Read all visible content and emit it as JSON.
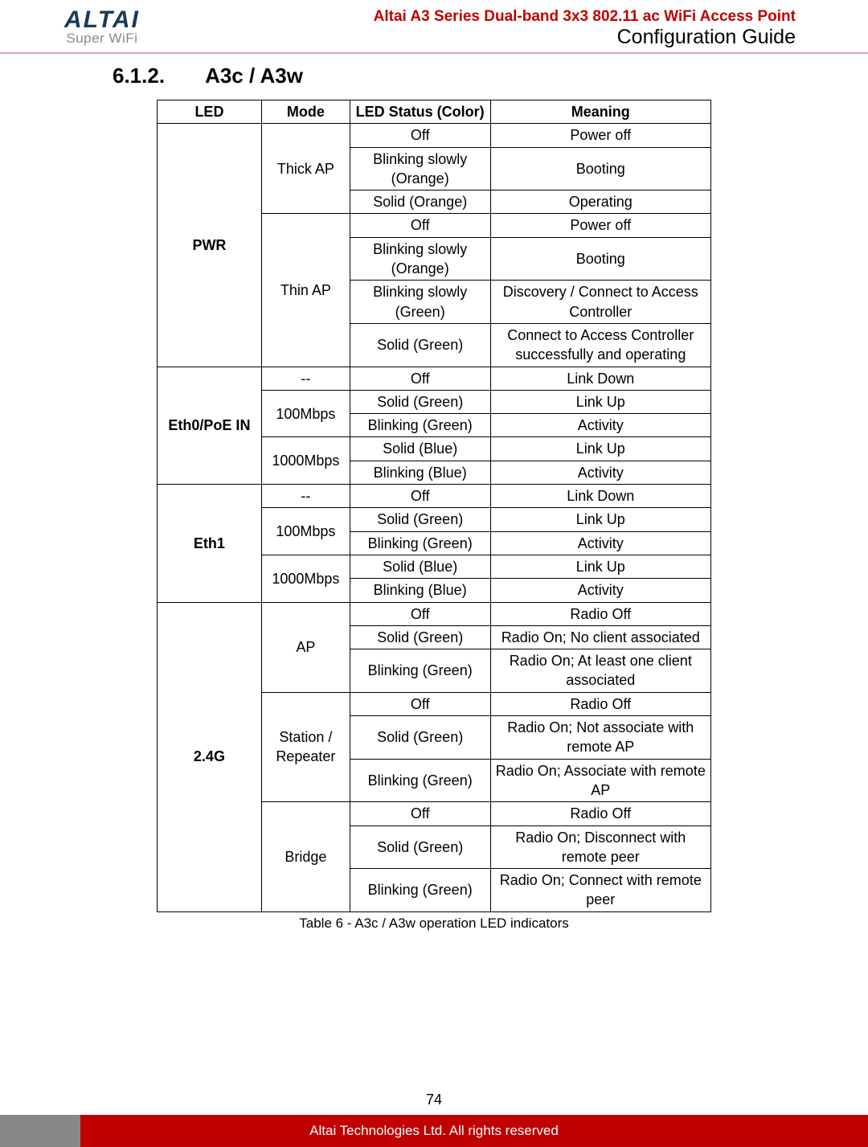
{
  "header": {
    "logo_top": "ALTAI",
    "logo_sub": "Super WiFi",
    "product_title": "Altai A3 Series Dual-band 3x3 802.11 ac WiFi Access Point",
    "doc_title": "Configuration Guide"
  },
  "section": {
    "num": "6.1.2.",
    "title": "A3c / A3w"
  },
  "table": {
    "headers": {
      "led": "LED",
      "mode": "Mode",
      "status": "LED Status (Color)",
      "meaning": "Meaning"
    },
    "groups": [
      {
        "led": "PWR",
        "modes": [
          {
            "mode": "Thick AP",
            "rows": [
              {
                "status": "Off",
                "meaning": "Power off"
              },
              {
                "status": "Blinking slowly (Orange)",
                "meaning": "Booting"
              },
              {
                "status": "Solid (Orange)",
                "meaning": "Operating"
              }
            ]
          },
          {
            "mode": "Thin AP",
            "rows": [
              {
                "status": "Off",
                "meaning": "Power off"
              },
              {
                "status": "Blinking slowly (Orange)",
                "meaning": "Booting"
              },
              {
                "status": "Blinking slowly (Green)",
                "meaning": "Discovery / Connect to Access Controller"
              },
              {
                "status": "Solid (Green)",
                "meaning": "Connect to Access Controller successfully and operating"
              }
            ]
          }
        ]
      },
      {
        "led": "Eth0/PoE IN",
        "modes": [
          {
            "mode": "--",
            "rows": [
              {
                "status": "Off",
                "meaning": "Link Down"
              }
            ]
          },
          {
            "mode": "100Mbps",
            "rows": [
              {
                "status": "Solid (Green)",
                "meaning": "Link Up"
              },
              {
                "status": "Blinking (Green)",
                "meaning": "Activity"
              }
            ]
          },
          {
            "mode": "1000Mbps",
            "rows": [
              {
                "status": "Solid (Blue)",
                "meaning": "Link Up"
              },
              {
                "status": "Blinking (Blue)",
                "meaning": "Activity"
              }
            ]
          }
        ]
      },
      {
        "led": "Eth1",
        "modes": [
          {
            "mode": "--",
            "rows": [
              {
                "status": "Off",
                "meaning": "Link Down"
              }
            ]
          },
          {
            "mode": "100Mbps",
            "rows": [
              {
                "status": "Solid (Green)",
                "meaning": "Link Up"
              },
              {
                "status": "Blinking (Green)",
                "meaning": "Activity"
              }
            ]
          },
          {
            "mode": "1000Mbps",
            "rows": [
              {
                "status": "Solid (Blue)",
                "meaning": "Link Up"
              },
              {
                "status": "Blinking (Blue)",
                "meaning": "Activity"
              }
            ]
          }
        ]
      },
      {
        "led": "2.4G",
        "modes": [
          {
            "mode": "AP",
            "rows": [
              {
                "status": "Off",
                "meaning": "Radio Off"
              },
              {
                "status": "Solid (Green)",
                "meaning": "Radio On; No client associated"
              },
              {
                "status": "Blinking (Green)",
                "meaning": "Radio On; At least one client associated"
              }
            ]
          },
          {
            "mode": "Station / Repeater",
            "rows": [
              {
                "status": "Off",
                "meaning": "Radio Off"
              },
              {
                "status": "Solid (Green)",
                "meaning": "Radio On; Not associate with remote AP"
              },
              {
                "status": "Blinking (Green)",
                "meaning": "Radio On; Associate with remote AP"
              }
            ]
          },
          {
            "mode": "Bridge",
            "rows": [
              {
                "status": "Off",
                "meaning": "Radio Off"
              },
              {
                "status": "Solid (Green)",
                "meaning": "Radio On; Disconnect with remote peer"
              },
              {
                "status": "Blinking (Green)",
                "meaning": "Radio On; Connect with remote peer"
              }
            ]
          }
        ]
      }
    ],
    "caption": "Table 6 - A3c / A3w operation LED indicators"
  },
  "page_num": "74",
  "footer": "Altai Technologies Ltd. All rights reserved"
}
